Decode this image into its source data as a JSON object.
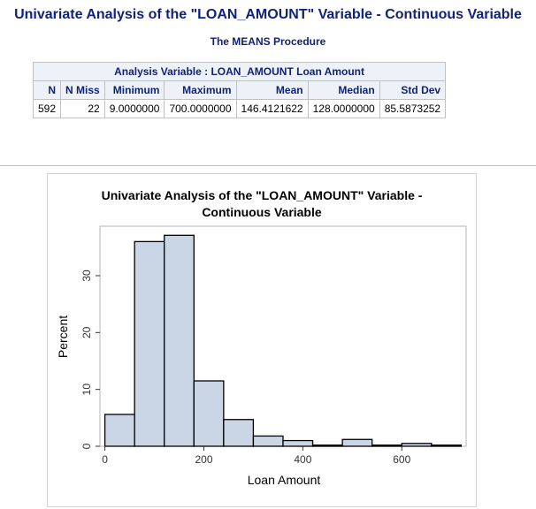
{
  "main_title": "Univariate Analysis of the \"LOAN_AMOUNT\" Variable - Continuous Variable",
  "proc_title": "The MEANS Procedure",
  "means_table": {
    "span_header": "Analysis Variable : LOAN_AMOUNT Loan Amount",
    "columns": [
      "N",
      "N Miss",
      "Minimum",
      "Maximum",
      "Mean",
      "Median",
      "Std Dev"
    ],
    "row": [
      "592",
      "22",
      "9.0000000",
      "700.0000000",
      "146.4121622",
      "128.0000000",
      "85.5873252"
    ]
  },
  "chart_data": {
    "type": "bar",
    "title": "Univariate Analysis of the \"LOAN_AMOUNT\" Variable - Continuous Variable",
    "title_lines": [
      "Univariate Analysis of the \"LOAN_AMOUNT\" Variable -",
      "Continuous Variable"
    ],
    "xlabel": "Loan Amount",
    "ylabel": "Percent",
    "bin_width": 60,
    "bins": [
      {
        "x0": 0,
        "x1": 60,
        "value": 5.6
      },
      {
        "x0": 60,
        "x1": 120,
        "value": 36.0
      },
      {
        "x0": 120,
        "x1": 180,
        "value": 37.1
      },
      {
        "x0": 180,
        "x1": 240,
        "value": 11.5
      },
      {
        "x0": 240,
        "x1": 300,
        "value": 4.7
      },
      {
        "x0": 300,
        "x1": 360,
        "value": 1.8
      },
      {
        "x0": 360,
        "x1": 420,
        "value": 1.0
      },
      {
        "x0": 420,
        "x1": 480,
        "value": 0.2
      },
      {
        "x0": 480,
        "x1": 540,
        "value": 1.2
      },
      {
        "x0": 540,
        "x1": 600,
        "value": 0.2
      },
      {
        "x0": 600,
        "x1": 660,
        "value": 0.5
      },
      {
        "x0": 660,
        "x1": 720,
        "value": 0.2
      }
    ],
    "xlim": [
      -10,
      730
    ],
    "ylim": [
      0,
      38.7
    ],
    "x_ticks": [
      0,
      200,
      400,
      600
    ],
    "y_ticks": [
      0,
      10,
      20,
      30
    ],
    "grid": false,
    "bar_fill": "#cad5e5",
    "bar_stroke": "#000000"
  }
}
